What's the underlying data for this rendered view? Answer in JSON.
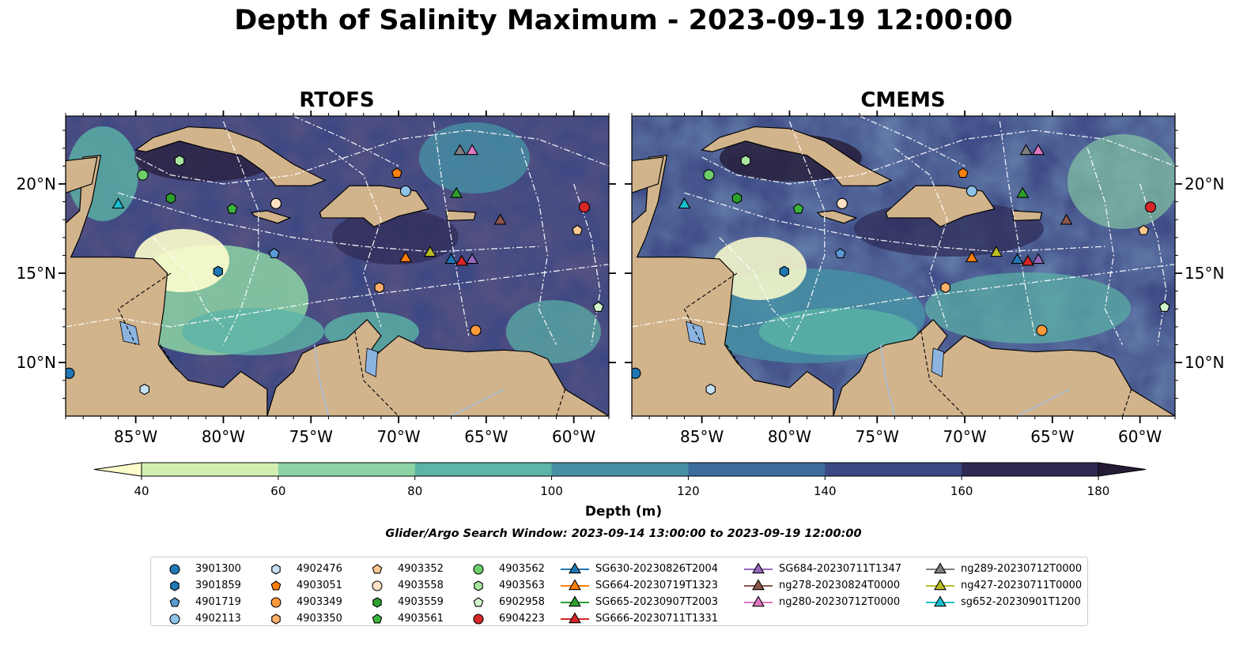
{
  "title": "Depth of Salinity Maximum - 2023-09-19 12:00:00",
  "panels": [
    {
      "title": "RTOFS"
    },
    {
      "title": "CMEMS"
    }
  ],
  "lon_ticks": [
    "85°W",
    "80°W",
    "75°W",
    "70°W",
    "65°W",
    "60°W"
  ],
  "lon_values": [
    -85,
    -80,
    -75,
    -70,
    -65,
    -60
  ],
  "lat_ticks": [
    "20°N",
    "15°N",
    "10°N"
  ],
  "lat_values": [
    20,
    15,
    10
  ],
  "extent": {
    "lon": [
      -89,
      -58
    ],
    "lat": [
      7,
      23.8
    ]
  },
  "colorbar": {
    "title": "Depth (m)",
    "ticks": [
      "40",
      "60",
      "80",
      "100",
      "120",
      "140",
      "160",
      "180"
    ],
    "colors": [
      "#fdfdcc",
      "#d3eeb0",
      "#8cd4a5",
      "#5bb4a6",
      "#4690a4",
      "#3c6c9c",
      "#3c4883",
      "#2e2a54",
      "#261b36"
    ]
  },
  "search_window": "Glider/Argo Search Window: 2023-09-14 13:00:00 to 2023-09-19 12:00:00",
  "colors": {
    "land": "#d2b48c",
    "lake": "#8cb4e0",
    "river": "#a6bddb"
  },
  "legend": [
    {
      "label": "3901300",
      "marker": "circle",
      "color": "#1f77b4"
    },
    {
      "label": "3901859",
      "marker": "hexagon",
      "color": "#1f77b4"
    },
    {
      "label": "4901719",
      "marker": "pentagon",
      "color": "#5b9bd5"
    },
    {
      "label": "4902113",
      "marker": "circle",
      "color": "#8ec3ea"
    },
    {
      "label": "4902476",
      "marker": "hexagon",
      "color": "#c6e0f5"
    },
    {
      "label": "4903051",
      "marker": "pentagon",
      "color": "#ff7f0e"
    },
    {
      "label": "4903349",
      "marker": "circle",
      "color": "#ff9a3c"
    },
    {
      "label": "4903350",
      "marker": "hexagon",
      "color": "#ffb06a"
    },
    {
      "label": "4903352",
      "marker": "pentagon",
      "color": "#ffc891"
    },
    {
      "label": "4903558",
      "marker": "circle",
      "color": "#ffe2c6"
    },
    {
      "label": "4903559",
      "marker": "hexagon",
      "color": "#2ca02c"
    },
    {
      "label": "4903561",
      "marker": "pentagon",
      "color": "#3cb43c"
    },
    {
      "label": "4903562",
      "marker": "circle",
      "color": "#6ccf6c"
    },
    {
      "label": "4903563",
      "marker": "hexagon",
      "color": "#a8e6a0"
    },
    {
      "label": "6902958",
      "marker": "pentagon",
      "color": "#d2f5cc"
    },
    {
      "label": "6904223",
      "marker": "circle",
      "color": "#d62728"
    },
    {
      "label": "SG630-20230826T2004",
      "marker": "triangle",
      "color": "#1f77b4"
    },
    {
      "label": "SG664-20230719T1323",
      "marker": "triangle",
      "color": "#ff7f0e"
    },
    {
      "label": "SG665-20230907T2003",
      "marker": "triangle",
      "color": "#2ca02c"
    },
    {
      "label": "SG666-20230711T1331",
      "marker": "triangle",
      "color": "#d62728"
    },
    {
      "label": "SG684-20230711T1347",
      "marker": "triangle",
      "color": "#9467bd"
    },
    {
      "label": "ng278-20230824T0000",
      "marker": "triangle",
      "color": "#8c564b"
    },
    {
      "label": "ng280-20230712T0000",
      "marker": "triangle",
      "color": "#e377c2"
    },
    {
      "label": "ng289-20230712T0000",
      "marker": "triangle",
      "color": "#7f7f7f"
    },
    {
      "label": "ng427-20230711T0000",
      "marker": "triangle",
      "color": "#bcbd22"
    },
    {
      "label": "sg652-20230901T1200",
      "marker": "triangle",
      "color": "#17becf"
    }
  ],
  "platform_positions": [
    {
      "label": "3901300",
      "lon": -88.8,
      "lat": 9.4
    },
    {
      "label": "3901859",
      "lon": -80.3,
      "lat": 15.1
    },
    {
      "label": "4901719",
      "lon": -77.1,
      "lat": 16.1
    },
    {
      "label": "4902113",
      "lon": -69.6,
      "lat": 19.6
    },
    {
      "label": "4902476",
      "lon": -84.5,
      "lat": 8.5
    },
    {
      "label": "4903051",
      "lon": -70.1,
      "lat": 20.6
    },
    {
      "label": "4903349",
      "lon": -65.6,
      "lat": 11.8
    },
    {
      "label": "4903350",
      "lon": -71.1,
      "lat": 14.2
    },
    {
      "label": "4903352",
      "lon": -59.8,
      "lat": 17.4
    },
    {
      "label": "4903558",
      "lon": -77.0,
      "lat": 18.9
    },
    {
      "label": "4903559",
      "lon": -83.0,
      "lat": 19.2
    },
    {
      "label": "4903561",
      "lon": -79.5,
      "lat": 18.6
    },
    {
      "label": "4903562",
      "lon": -84.6,
      "lat": 20.5
    },
    {
      "label": "4903563",
      "lon": -82.5,
      "lat": 21.3
    },
    {
      "label": "6902958",
      "lon": -58.6,
      "lat": 13.1
    },
    {
      "label": "6904223",
      "lon": -59.4,
      "lat": 18.7
    },
    {
      "label": "SG630-20230826T2004",
      "lon": -67.0,
      "lat": 15.8
    },
    {
      "label": "SG664-20230719T1323",
      "lon": -69.6,
      "lat": 15.9
    },
    {
      "label": "SG665-20230907T2003",
      "lon": -66.7,
      "lat": 19.5
    },
    {
      "label": "SG666-20230711T1331",
      "lon": -66.4,
      "lat": 15.7
    },
    {
      "label": "SG684-20230711T1347",
      "lon": -65.8,
      "lat": 15.8
    },
    {
      "label": "ng278-20230824T0000",
      "lon": -64.2,
      "lat": 18.0
    },
    {
      "label": "ng280-20230712T0000",
      "lon": -65.8,
      "lat": 21.9
    },
    {
      "label": "ng289-20230712T0000",
      "lon": -66.5,
      "lat": 21.9
    },
    {
      "label": "ng427-20230711T0000",
      "lon": -68.2,
      "lat": 16.2
    },
    {
      "label": "sg652-20230901T1200",
      "lon": -86.0,
      "lat": 18.9
    }
  ]
}
